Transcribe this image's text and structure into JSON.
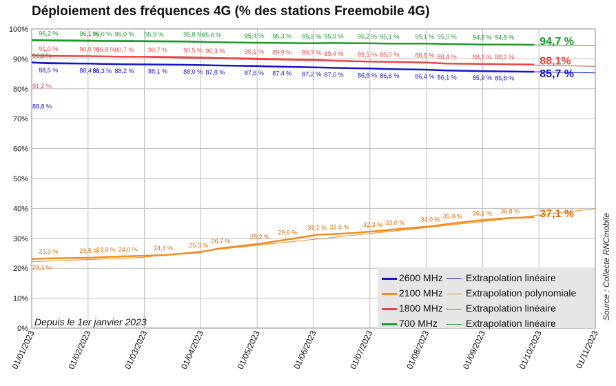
{
  "title": "Déploiement des fréquences 4G (% des stations Freemobile 4G)",
  "source": "Source : Collecte RNCmobile",
  "since_note": "Depuis le 1er janvier 2023",
  "chart_data": {
    "type": "line",
    "title": "Déploiement des fréquences 4G (% des stations Freemobile 4G)",
    "ylim": [
      0,
      100
    ],
    "y_ticks": [
      "0%",
      "10%",
      "20%",
      "30%",
      "40%",
      "50%",
      "60%",
      "70%",
      "80%",
      "90%",
      "100%"
    ],
    "x_ticks": [
      "01/01/2023",
      "01/02/2023",
      "01/03/2023",
      "01/04/2023",
      "01/05/2023",
      "01/06/2023",
      "01/07/2023",
      "01/08/2023",
      "01/09/2023",
      "01/10/2023",
      "01/11/2023"
    ],
    "xlim": [
      "2023-01-01",
      "2023-11-01"
    ],
    "grid": true,
    "legend_position": "bottom-right",
    "series": [
      {
        "name": "700 MHz",
        "color": "#1a9a2e",
        "label_color": "#1a9a2e",
        "label_side": "above",
        "final_label": "94,7 %",
        "points": [
          [
            "2023-01-01",
            96.3
          ],
          [
            "2023-01-10",
            96.2
          ],
          [
            "2023-02-01",
            96.1
          ],
          [
            "2023-02-08",
            96.0
          ],
          [
            "2023-02-20",
            96.0
          ],
          [
            "2023-03-08",
            95.9
          ],
          [
            "2023-03-29",
            95.8
          ],
          [
            "2023-04-08",
            95.6
          ],
          [
            "2023-05-01",
            95.4
          ],
          [
            "2023-05-16",
            95.3
          ],
          [
            "2023-06-01",
            95.2
          ],
          [
            "2023-06-13",
            95.3
          ],
          [
            "2023-07-01",
            95.2
          ],
          [
            "2023-07-13",
            95.1
          ],
          [
            "2023-08-01",
            95.1
          ],
          [
            "2023-08-13",
            95.0
          ],
          [
            "2023-09-01",
            94.8
          ],
          [
            "2023-09-13",
            94.8
          ],
          [
            "2023-09-29",
            94.7
          ]
        ],
        "extrapolation": "Extrapolation linéaire",
        "trend": [
          [
            "2023-01-01",
            96.0
          ],
          [
            "2023-11-01",
            94.5
          ]
        ]
      },
      {
        "name": "1800 MHz",
        "color": "#e84545",
        "label_color": "#e84545",
        "label_side": "above",
        "final_label": "88,1%",
        "points": [
          [
            "2023-01-01",
            91.2
          ],
          [
            "2023-01-10",
            91.0
          ],
          [
            "2023-02-01",
            90.9
          ],
          [
            "2023-02-10",
            90.8
          ],
          [
            "2023-02-20",
            90.7
          ],
          [
            "2023-03-10",
            90.7
          ],
          [
            "2023-03-29",
            90.5
          ],
          [
            "2023-04-10",
            90.3
          ],
          [
            "2023-05-01",
            90.1
          ],
          [
            "2023-05-16",
            89.9
          ],
          [
            "2023-06-01",
            89.7
          ],
          [
            "2023-06-13",
            89.4
          ],
          [
            "2023-07-01",
            89.1
          ],
          [
            "2023-07-13",
            89.0
          ],
          [
            "2023-08-01",
            88.8
          ],
          [
            "2023-08-13",
            88.4
          ],
          [
            "2023-09-01",
            88.3
          ],
          [
            "2023-09-13",
            88.2
          ],
          [
            "2023-09-29",
            88.1
          ]
        ],
        "extrapolation": "Extrapolation linéaire",
        "trend": [
          [
            "2023-01-01",
            91.3
          ],
          [
            "2023-11-01",
            87.5
          ]
        ]
      },
      {
        "name": "2600 MHz",
        "color": "#1414c8",
        "label_color": "#1414c8",
        "label_side": "below",
        "final_label": "85,7 %",
        "points": [
          [
            "2023-01-01",
            88.8
          ],
          [
            "2023-01-10",
            88.5
          ],
          [
            "2023-02-01",
            88.4
          ],
          [
            "2023-02-08",
            88.3
          ],
          [
            "2023-02-20",
            88.2
          ],
          [
            "2023-03-10",
            88.1
          ],
          [
            "2023-03-29",
            88.0
          ],
          [
            "2023-04-10",
            87.8
          ],
          [
            "2023-05-01",
            87.6
          ],
          [
            "2023-05-16",
            87.4
          ],
          [
            "2023-06-01",
            87.2
          ],
          [
            "2023-06-13",
            87.0
          ],
          [
            "2023-07-01",
            86.8
          ],
          [
            "2023-07-13",
            86.6
          ],
          [
            "2023-08-01",
            86.4
          ],
          [
            "2023-08-13",
            86.1
          ],
          [
            "2023-09-01",
            85.9
          ],
          [
            "2023-09-13",
            85.8
          ],
          [
            "2023-09-29",
            85.7
          ]
        ],
        "extrapolation": "Extrapolation linéaire",
        "trend": [
          [
            "2023-01-01",
            88.9
          ],
          [
            "2023-11-01",
            85.3
          ]
        ]
      },
      {
        "name": "2100 MHz",
        "color": "#f28c1e",
        "label_color": "#e06c00",
        "label_side": "above",
        "final_label": "37,1 %",
        "points": [
          [
            "2023-01-01",
            23.1
          ],
          [
            "2023-01-10",
            23.3
          ],
          [
            "2023-02-01",
            23.5
          ],
          [
            "2023-02-10",
            23.8
          ],
          [
            "2023-02-22",
            24.0
          ],
          [
            "2023-03-13",
            24.4
          ],
          [
            "2023-04-01",
            25.3
          ],
          [
            "2023-04-13",
            26.7
          ],
          [
            "2023-05-04",
            28.2
          ],
          [
            "2023-05-19",
            29.6
          ],
          [
            "2023-06-04",
            31.2
          ],
          [
            "2023-06-16",
            31.5
          ],
          [
            "2023-07-04",
            32.3
          ],
          [
            "2023-07-16",
            33.0
          ],
          [
            "2023-08-04",
            34.0
          ],
          [
            "2023-08-16",
            35.0
          ],
          [
            "2023-09-01",
            36.1
          ],
          [
            "2023-09-16",
            36.8
          ],
          [
            "2023-09-29",
            37.1
          ]
        ],
        "extrapolation": "Extrapolation polynomiale",
        "trend": [
          [
            "2023-01-01",
            22.2
          ],
          [
            "2023-03-01",
            23.6
          ],
          [
            "2023-05-01",
            27.6
          ],
          [
            "2023-07-01",
            31.5
          ],
          [
            "2023-09-01",
            35.6
          ],
          [
            "2023-11-01",
            39.9
          ]
        ]
      }
    ]
  },
  "legend": {
    "rows": [
      {
        "series": "2600 MHz",
        "trend": "Extrapolation linéaire",
        "color": "#1414c8"
      },
      {
        "series": "2100 MHz",
        "trend": "Extrapolation polynomiale",
        "color": "#f28c1e"
      },
      {
        "series": "1800 MHz",
        "trend": "Extrapolation linéaire",
        "color": "#e84545"
      },
      {
        "series": "700 MHz",
        "trend": "Extrapolation linéaire",
        "color": "#1a9a2e"
      }
    ]
  }
}
